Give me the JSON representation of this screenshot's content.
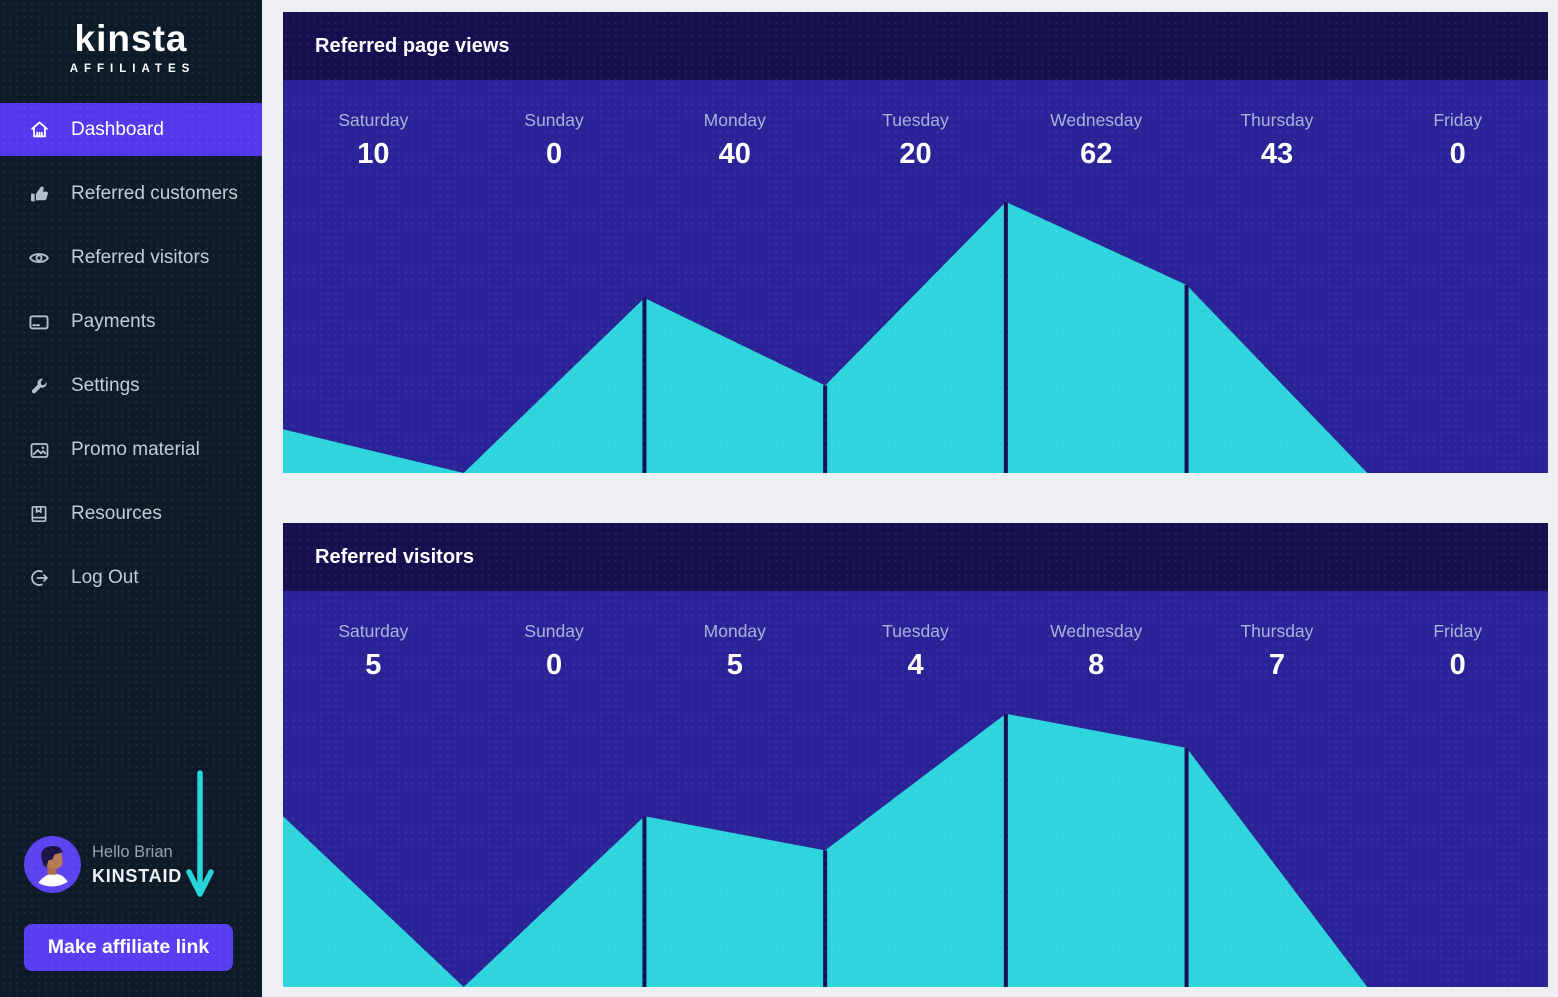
{
  "colors": {
    "page_bg": "#edeff3",
    "sidebar_bg": "#0d1b29",
    "accent_purple": "#5538ee",
    "button_purple": "#5a3df3",
    "cyan": "#2ed5dc",
    "chart_header_bg": "#150f4d",
    "chart_body_bg": "#2a2397",
    "chart_divider": "#160f55",
    "day_label": "#aab2d9",
    "arrow_cyan": "#2bd3da"
  },
  "sidebar": {
    "logo": {
      "brand": "Kinsta",
      "sub": "AFFILIATES"
    },
    "items": [
      {
        "label": "Dashboard",
        "icon": "home",
        "active": true
      },
      {
        "label": "Referred customers",
        "icon": "thumbs-up",
        "active": false
      },
      {
        "label": "Referred visitors",
        "icon": "eye",
        "active": false
      },
      {
        "label": "Payments",
        "icon": "credit-card",
        "active": false
      },
      {
        "label": "Settings",
        "icon": "wrench",
        "active": false
      },
      {
        "label": "Promo material",
        "icon": "image",
        "active": false
      },
      {
        "label": "Resources",
        "icon": "book",
        "active": false
      },
      {
        "label": "Log Out",
        "icon": "logout",
        "active": false
      }
    ],
    "user": {
      "greeting": "Hello Brian",
      "username": "KINSTAID"
    },
    "cta": {
      "label": "Make affiliate link"
    }
  },
  "chart_data": [
    {
      "type": "area",
      "title": "Referred page views",
      "categories": [
        "Saturday",
        "Sunday",
        "Monday",
        "Tuesday",
        "Wednesday",
        "Thursday",
        "Friday"
      ],
      "values": [
        10,
        0,
        40,
        20,
        62,
        43,
        0
      ],
      "ylim": [
        0,
        62
      ],
      "grid": false,
      "legend": "none",
      "colors": {
        "area": "#2ed5dc",
        "background": "#2a2397",
        "divider": "#160f55"
      }
    },
    {
      "type": "area",
      "title": "Referred visitors",
      "categories": [
        "Saturday",
        "Sunday",
        "Monday",
        "Tuesday",
        "Wednesday",
        "Thursday",
        "Friday"
      ],
      "values": [
        5,
        0,
        5,
        4,
        8,
        7,
        0
      ],
      "ylim": [
        0,
        8
      ],
      "grid": false,
      "legend": "none",
      "colors": {
        "area": "#2ed5dc",
        "background": "#2a2397",
        "divider": "#160f55"
      }
    }
  ]
}
